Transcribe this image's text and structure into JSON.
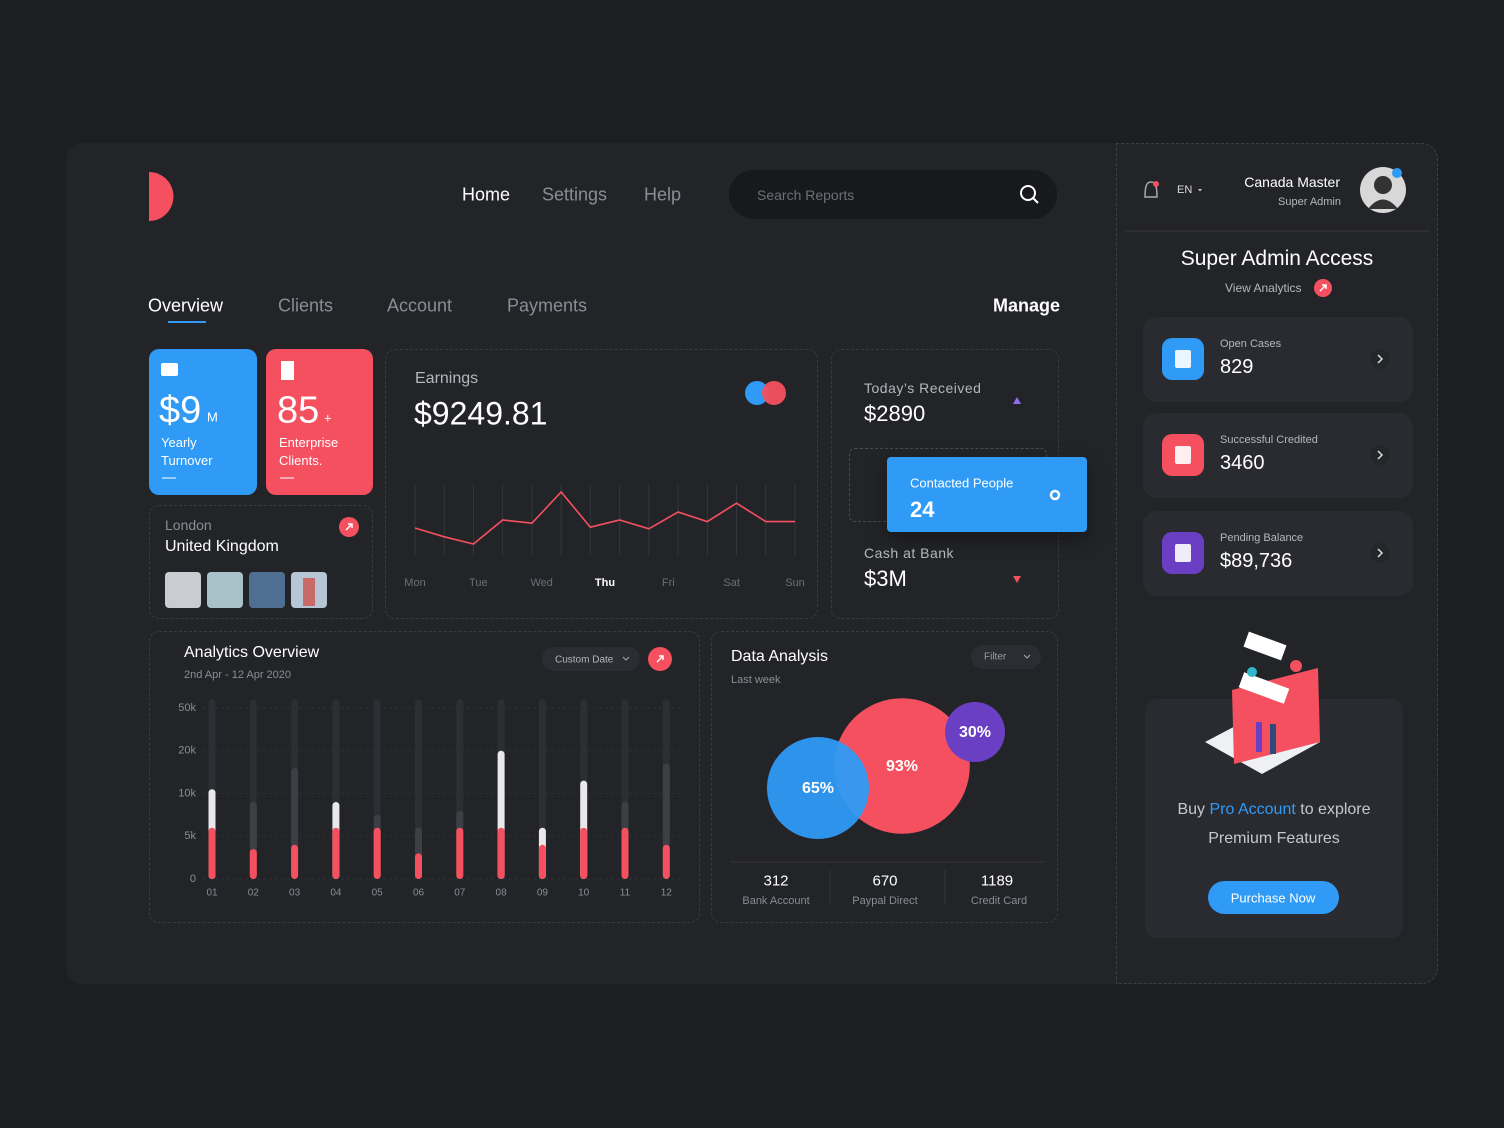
{
  "nav": [
    "Home",
    "Settings",
    "Help"
  ],
  "search_placeholder": "Search Reports",
  "tabs": [
    "Overview",
    "Clients",
    "Account",
    "Payments"
  ],
  "manage": "Manage",
  "turnover": {
    "value": "$9",
    "unit": "M",
    "label": "Yearly Turnover",
    "color": "#2f9bf6"
  },
  "clients": {
    "value": 85,
    "unit": "+",
    "label": "Enterprise Clients.",
    "color": "#f5505f"
  },
  "location": {
    "city": "London",
    "country": "United Kingdom"
  },
  "earnings": {
    "title": "Earnings",
    "total": "$9249.81",
    "days": [
      "Mon",
      "Tue",
      "Wed",
      "Thu",
      "Fri",
      "Sat",
      "Sun"
    ],
    "values": [
      40,
      29,
      20,
      50,
      46,
      85,
      41,
      50,
      39,
      60,
      48,
      71,
      48,
      48
    ],
    "ylim": [
      0,
      100
    ],
    "color": "#f5505f"
  },
  "received": {
    "label": "Today’s Received",
    "value": "$2890"
  },
  "contacted": {
    "label": "Contacted People",
    "value": 24
  },
  "cash": {
    "label": "Cash at Bank",
    "value": "$3M"
  },
  "analytics": {
    "title": "Analytics Overview",
    "subtitle": "2nd Apr - 12 Apr 2020",
    "date_filter": "Custom Date",
    "categories": [
      "01",
      "02",
      "03",
      "04",
      "05",
      "06",
      "07",
      "08",
      "09",
      "10",
      "11",
      "12"
    ],
    "ylim": [
      0,
      50000
    ],
    "yticks": [
      0,
      {
        "value": 5000,
        "label": "5k"
      },
      {
        "value": 10000,
        "label": "10k"
      },
      {
        "value": 20000,
        "label": "20k"
      },
      {
        "value": 50000,
        "label": "50k"
      }
    ],
    "series": [
      {
        "color": "#3e3f45",
        "values": [
          null,
          9000,
          16000,
          null,
          7500,
          6000,
          8000,
          null,
          null,
          null,
          9000,
          17000
        ]
      },
      {
        "color": "#e9e9ec",
        "values": [
          11000,
          null,
          null,
          9000,
          null,
          null,
          null,
          20000,
          6000,
          13000,
          null,
          null
        ]
      },
      {
        "color": "#f5505f",
        "values": [
          6000,
          3500,
          4000,
          6000,
          6000,
          3000,
          6000,
          6000,
          4000,
          6000,
          6000,
          4000
        ]
      }
    ]
  },
  "data_analysis": {
    "title": "Data Analysis",
    "subtitle": "Last week",
    "filter": "Filter",
    "bubbles": {
      "values": [
        65,
        93,
        30
      ],
      "value_labels": [
        "65%",
        "93%",
        "30%"
      ],
      "colors": [
        "#2f9bf6",
        "#f5505f",
        "#6a3fc4"
      ]
    },
    "stats": [
      {
        "value": 312,
        "label": "Bank Account"
      },
      {
        "value": 670,
        "label": "Paypal Direct"
      },
      {
        "value": 1189,
        "label": "Credit Card"
      }
    ]
  },
  "user": {
    "language": "EN",
    "name": "Canada Master",
    "role": "Super Admin"
  },
  "access": {
    "title": "Super Admin Access",
    "link": "View Analytics"
  },
  "balances": [
    {
      "label": "Open Cases",
      "value": 829,
      "color": "#2f9bf6"
    },
    {
      "label": "Successful Credited",
      "value": 3460,
      "color": "#f5505f"
    },
    {
      "label": "Pending Balance",
      "value": "$89,736",
      "color": "#6a3fc4"
    }
  ],
  "promo": {
    "before": "Buy",
    "highlight": "Pro Account",
    "after": "to explore Premium Features",
    "button": "Purchase Now"
  }
}
